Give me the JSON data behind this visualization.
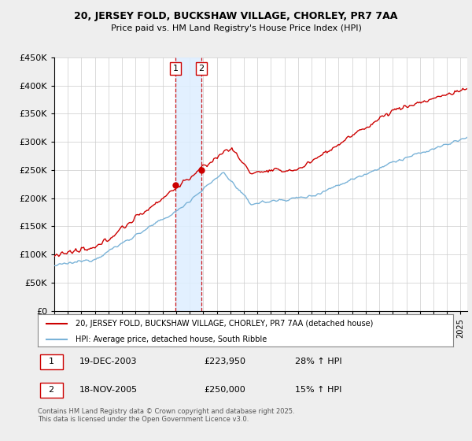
{
  "title": "20, JERSEY FOLD, BUCKSHAW VILLAGE, CHORLEY, PR7 7AA",
  "subtitle": "Price paid vs. HM Land Registry's House Price Index (HPI)",
  "legend_line1": "20, JERSEY FOLD, BUCKSHAW VILLAGE, CHORLEY, PR7 7AA (detached house)",
  "legend_line2": "HPI: Average price, detached house, South Ribble",
  "footer": "Contains HM Land Registry data © Crown copyright and database right 2025.\nThis data is licensed under the Open Government Licence v3.0.",
  "sale1_date": "19-DEC-2003",
  "sale1_price": "£223,950",
  "sale1_hpi": "28% ↑ HPI",
  "sale2_date": "18-NOV-2005",
  "sale2_price": "£250,000",
  "sale2_hpi": "15% ↑ HPI",
  "hpi_color": "#7ab3d8",
  "price_color": "#cc0000",
  "sale_marker_color": "#cc0000",
  "vline_color": "#cc0000",
  "vshade_color": "#ddeeff",
  "ylim": [
    0,
    450000
  ],
  "yticks": [
    0,
    50000,
    100000,
    150000,
    200000,
    250000,
    300000,
    350000,
    400000,
    450000
  ],
  "background": "#eeeeee",
  "plot_bg": "#ffffff",
  "sale1_year": 2003.96,
  "sale2_year": 2005.87,
  "sale1_price_val": 223950,
  "sale2_price_val": 250000
}
